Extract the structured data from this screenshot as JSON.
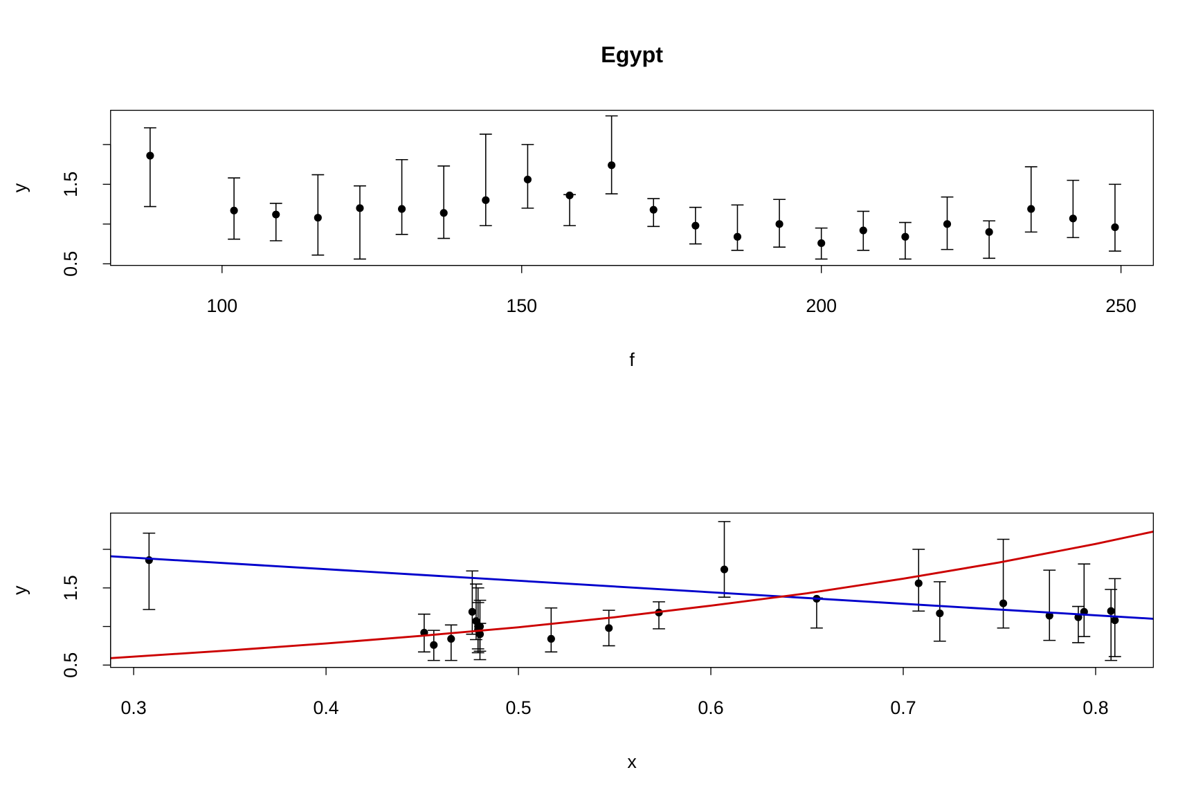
{
  "chart_data": [
    {
      "type": "scatter",
      "title": "Egypt",
      "xlabel": "f",
      "ylabel": "y",
      "color": "#000000",
      "xlim": [
        81.4,
        255.4
      ],
      "ylim": [
        0.48,
        2.43
      ],
      "xticks": [
        100,
        150,
        200,
        250
      ],
      "yticks": [
        0.5,
        {
          "value": 1,
          "label": null
        },
        1.5,
        {
          "value": 2,
          "label": null
        }
      ],
      "x": [
        88,
        102,
        109,
        116,
        123,
        130,
        137,
        144,
        151,
        158,
        165,
        172,
        179,
        186,
        193,
        200,
        207,
        214,
        221,
        228,
        235,
        242,
        249
      ],
      "values": [
        1.86,
        1.17,
        1.12,
        1.08,
        1.2,
        1.19,
        1.14,
        1.3,
        1.56,
        1.36,
        1.74,
        1.18,
        0.98,
        0.84,
        1.0,
        0.76,
        0.92,
        0.84,
        1.0,
        0.9,
        1.19,
        1.07,
        0.96
      ],
      "err_low": [
        1.22,
        0.81,
        0.79,
        0.61,
        0.56,
        0.87,
        0.82,
        0.98,
        1.2,
        0.98,
        1.38,
        0.97,
        0.75,
        0.67,
        0.71,
        0.56,
        0.67,
        0.56,
        0.68,
        0.57,
        0.9,
        0.83,
        0.66
      ],
      "err_high": [
        2.21,
        1.58,
        1.26,
        1.62,
        1.48,
        1.81,
        1.73,
        2.13,
        2.0,
        1.37,
        2.36,
        1.32,
        1.21,
        1.24,
        1.31,
        0.95,
        1.16,
        1.02,
        1.34,
        1.04,
        1.72,
        1.55,
        1.5
      ]
    },
    {
      "type": "scatter",
      "xlabel": "x",
      "ylabel": "y",
      "color": "#000000",
      "xlim": [
        0.288,
        0.83
      ],
      "ylim": [
        0.47,
        2.47
      ],
      "xticks": [
        0.3,
        0.4,
        0.5,
        0.6,
        0.7,
        0.8
      ],
      "yticks": [
        0.5,
        {
          "value": 1,
          "label": null
        },
        1.5,
        {
          "value": 2,
          "label": null
        }
      ],
      "x": [
        0.308,
        0.719,
        0.791,
        0.81,
        0.808,
        0.794,
        0.776,
        0.752,
        0.708,
        0.655,
        0.607,
        0.573,
        0.547,
        0.517,
        0.479,
        0.456,
        0.451,
        0.465,
        0.48,
        0.48,
        0.476,
        0.478,
        0.479
      ],
      "values": [
        1.86,
        1.17,
        1.12,
        1.08,
        1.2,
        1.19,
        1.14,
        1.3,
        1.56,
        1.36,
        1.74,
        1.18,
        0.98,
        0.84,
        1.0,
        0.76,
        0.92,
        0.84,
        1.0,
        0.9,
        1.19,
        1.07,
        0.96
      ],
      "err_low": [
        1.22,
        0.81,
        0.79,
        0.61,
        0.56,
        0.87,
        0.82,
        0.98,
        1.2,
        0.98,
        1.38,
        0.97,
        0.75,
        0.67,
        0.71,
        0.56,
        0.67,
        0.56,
        0.68,
        0.57,
        0.9,
        0.83,
        0.66
      ],
      "err_high": [
        2.21,
        1.58,
        1.26,
        1.62,
        1.48,
        1.81,
        1.73,
        2.13,
        2.0,
        1.37,
        2.36,
        1.32,
        1.21,
        1.24,
        1.31,
        0.95,
        1.16,
        1.02,
        1.34,
        1.04,
        1.72,
        1.55,
        1.5
      ],
      "lines": [
        {
          "color": "#0000cc",
          "x": [
            0.288,
            0.83
          ],
          "values": [
            1.91,
            1.1
          ]
        },
        {
          "color": "#cc0000",
          "x": [
            0.288,
            0.35,
            0.4,
            0.45,
            0.5,
            0.55,
            0.6,
            0.65,
            0.7,
            0.75,
            0.8,
            0.83
          ],
          "values": [
            0.59,
            0.69,
            0.78,
            0.88,
            0.99,
            1.12,
            1.27,
            1.43,
            1.62,
            1.83,
            2.07,
            2.23
          ]
        }
      ]
    }
  ]
}
